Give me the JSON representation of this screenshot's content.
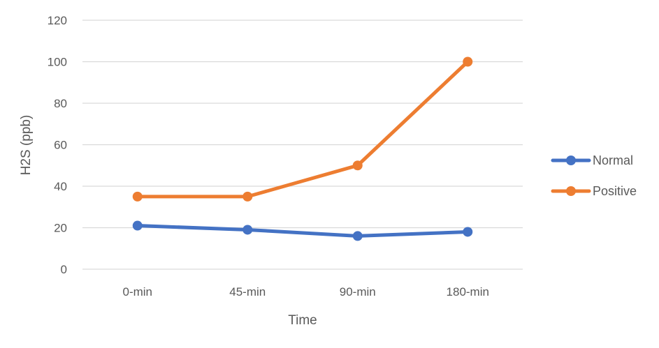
{
  "chart_data": {
    "type": "line",
    "categories": [
      "0-min",
      "45-min",
      "90-min",
      "180-min"
    ],
    "series": [
      {
        "name": "Normal",
        "values": [
          21,
          19,
          16,
          18
        ],
        "color": "#4472C4"
      },
      {
        "name": "Positive",
        "values": [
          35,
          35,
          50,
          100
        ],
        "color": "#ED7D31"
      }
    ],
    "ylim": [
      0,
      120
    ],
    "yticks": [
      0,
      20,
      40,
      60,
      80,
      100,
      120
    ],
    "xlabel": "Time",
    "ylabel": "H2S (ppb)",
    "grid": "horizontal",
    "legend_position": "right",
    "gridline_color": "#d9d9d9"
  }
}
